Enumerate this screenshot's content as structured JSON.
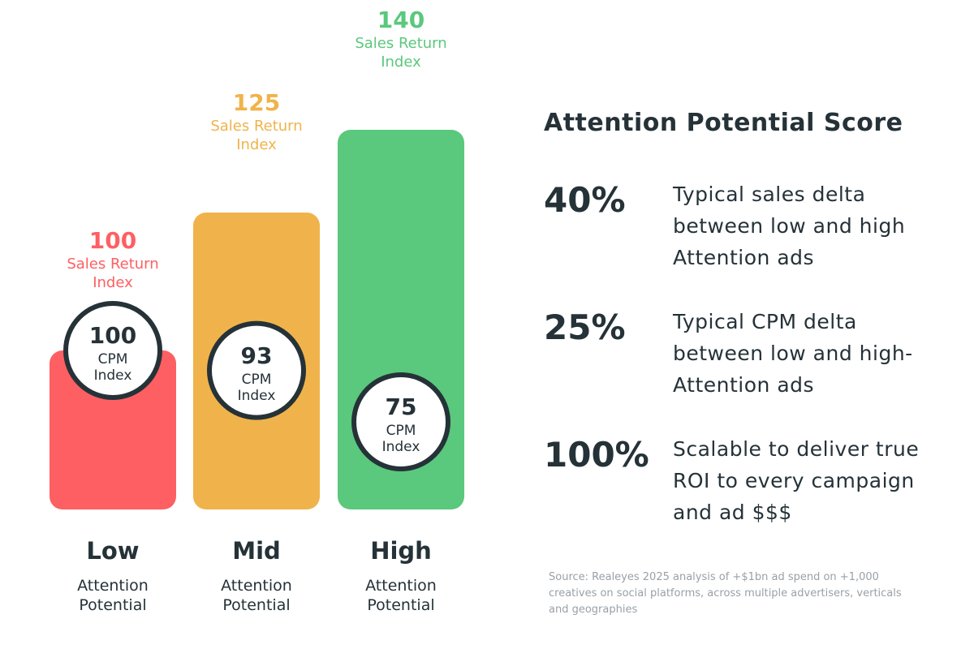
{
  "chart_data": {
    "type": "bar",
    "categories": [
      "Low",
      "Mid",
      "High"
    ],
    "category_subtitle": "Attention Potential",
    "sales_label": "Sales Return Index",
    "cpm_label": "CPM Index",
    "values": [
      100,
      125,
      140
    ],
    "cpm_values": [
      100,
      93,
      75
    ],
    "colors": [
      "#fe5f62",
      "#f0b34b",
      "#5ac87d"
    ]
  },
  "panel": {
    "title": "Attention Potential Score",
    "stats": [
      {
        "value": "40%",
        "text": "Typical sales delta between low and high Attention ads"
      },
      {
        "value": "25%",
        "text": "Typical CPM delta between low and high-Attention ads"
      },
      {
        "value": "100%",
        "text": "Scalable to deliver true ROI to every campaign and ad $$$"
      }
    ],
    "source": "Source: Realeyes 2025 analysis of +$1bn ad spend on +1,000 creatives on social platforms, across multiple advertisers, verticals and geographies"
  }
}
